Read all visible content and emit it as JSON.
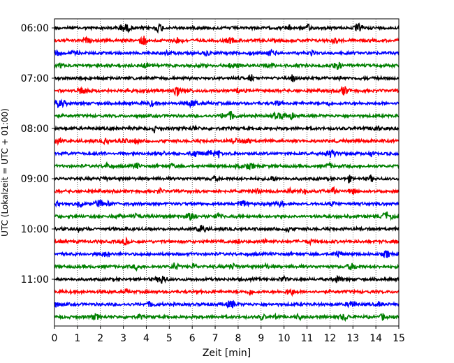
{
  "chart_data": {
    "type": "line",
    "title": "",
    "xlabel": "Zeit  [min]",
    "ylabel": "UTC (Lokalzeit = UTC + 01:00)",
    "xlim": [
      0,
      15
    ],
    "x_ticks": [
      "0",
      "1",
      "2",
      "3",
      "4",
      "5",
      "6",
      "7",
      "8",
      "9",
      "10",
      "11",
      "12",
      "13",
      "14",
      "15"
    ],
    "y_tick_labels": [
      "06:00",
      "07:00",
      "08:00",
      "09:00",
      "10:00",
      "11:00"
    ],
    "grid_x": true,
    "trace_interval_minutes": 15,
    "start_time": "06:00",
    "colors": [
      "#000000",
      "#ff0000",
      "#0000ff",
      "#008000"
    ],
    "series": [
      {
        "label": "06:00"
      },
      {
        "label": "06:15"
      },
      {
        "label": "06:30"
      },
      {
        "label": "06:45"
      },
      {
        "label": "07:00"
      },
      {
        "label": "07:15"
      },
      {
        "label": "07:30"
      },
      {
        "label": "07:45"
      },
      {
        "label": "08:00"
      },
      {
        "label": "08:15"
      },
      {
        "label": "08:30"
      },
      {
        "label": "08:45"
      },
      {
        "label": "09:00"
      },
      {
        "label": "09:15"
      },
      {
        "label": "09:30"
      },
      {
        "label": "09:45"
      },
      {
        "label": "10:00"
      },
      {
        "label": "10:15"
      },
      {
        "label": "10:30"
      },
      {
        "label": "10:45"
      },
      {
        "label": "11:00"
      },
      {
        "label": "11:15"
      },
      {
        "label": "11:30"
      },
      {
        "label": "11:45"
      }
    ]
  }
}
